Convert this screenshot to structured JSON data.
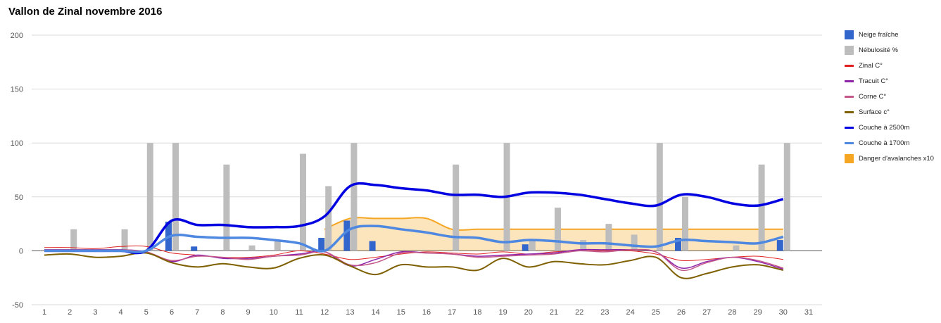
{
  "chart_data": {
    "type": "bar",
    "title": "Vallon de Zinal novembre 2016",
    "xlabel": "",
    "ylabel": "",
    "ylim": [
      -50,
      200
    ],
    "yticks": [
      -50,
      0,
      50,
      100,
      150,
      200
    ],
    "x": [
      1,
      2,
      3,
      4,
      5,
      6,
      7,
      8,
      9,
      10,
      11,
      12,
      13,
      14,
      15,
      16,
      17,
      18,
      19,
      20,
      21,
      22,
      23,
      24,
      25,
      26,
      27,
      28,
      29,
      30,
      31
    ],
    "grid": true,
    "legend_position": "right",
    "series": [
      {
        "name": "Neige fraîche",
        "kind": "bar",
        "color": "#3366cc",
        "values": [
          0,
          0,
          0,
          0,
          0,
          27,
          4,
          0,
          0,
          0,
          0,
          12,
          28,
          9,
          0,
          0,
          0,
          0,
          0,
          6,
          0,
          0,
          0,
          0,
          0,
          12,
          0,
          0,
          0,
          10,
          0
        ]
      },
      {
        "name": "Nébulosité %",
        "kind": "bar",
        "color": "#bdbdbd",
        "values": [
          0,
          20,
          0,
          20,
          100,
          100,
          0,
          80,
          5,
          10,
          90,
          60,
          100,
          0,
          0,
          0,
          80,
          0,
          100,
          10,
          40,
          10,
          25,
          15,
          100,
          50,
          0,
          5,
          80,
          100,
          0
        ]
      },
      {
        "name": "Zinal C°",
        "kind": "line",
        "color": "#e02020",
        "values": [
          3,
          3,
          2,
          4,
          4,
          -2,
          -4,
          -6,
          -6,
          -4,
          0,
          -3,
          -8,
          -6,
          -3,
          -1,
          -2,
          -3,
          -1,
          -3,
          -1,
          0,
          0,
          0,
          -3,
          -9,
          -8,
          -6,
          -5,
          -8,
          null
        ]
      },
      {
        "name": "Tracuit C°",
        "kind": "line",
        "color": "#8e24aa",
        "values": [
          1,
          1,
          1,
          1,
          -1,
          -10,
          -4,
          -7,
          -7,
          -5,
          -3,
          -1,
          -14,
          -8,
          -1,
          -2,
          -3,
          -5,
          -4,
          -3,
          -2,
          1,
          1,
          1,
          -1,
          -16,
          -10,
          -6,
          -10,
          -17,
          null
        ]
      },
      {
        "name": "Corne C°",
        "kind": "line",
        "color": "#c2578a",
        "values": [
          1,
          1,
          1,
          1,
          -1,
          -9,
          -5,
          -6,
          -8,
          -5,
          -4,
          -1,
          -13,
          -11,
          -2,
          -2,
          -3,
          -6,
          -5,
          -4,
          -3,
          0,
          -1,
          1,
          -1,
          -18,
          -11,
          -6,
          -9,
          -16,
          null
        ]
      },
      {
        "name": "Surface c°",
        "kind": "line",
        "color": "#7f6000",
        "values": [
          -4,
          -3,
          -6,
          -5,
          -2,
          -11,
          -15,
          -12,
          -15,
          -16,
          -7,
          -4,
          -14,
          -22,
          -13,
          -15,
          -15,
          -18,
          -7,
          -15,
          -10,
          -12,
          -13,
          -9,
          -6,
          -25,
          -21,
          -15,
          -13,
          -18,
          null
        ]
      },
      {
        "name": "Couche à 2500m",
        "kind": "line",
        "color": "#0000e0",
        "values": [
          0,
          0,
          0,
          0,
          0,
          28,
          24,
          24,
          22,
          22,
          23,
          32,
          60,
          61,
          58,
          56,
          52,
          52,
          50,
          54,
          54,
          52,
          48,
          44,
          42,
          52,
          50,
          44,
          42,
          48,
          null
        ]
      },
      {
        "name": "Couche à 1700m",
        "kind": "line",
        "color": "#4f88e0",
        "values": [
          0,
          0,
          0,
          0,
          0,
          14,
          13,
          12,
          12,
          10,
          7,
          0,
          20,
          23,
          20,
          17,
          13,
          12,
          8,
          10,
          9,
          7,
          7,
          5,
          4,
          10,
          9,
          8,
          7,
          13,
          null
        ]
      },
      {
        "name": "Danger d'avalanches x10",
        "kind": "area",
        "color": "#f5a623",
        "values": [
          null,
          null,
          null,
          null,
          null,
          null,
          null,
          null,
          null,
          null,
          null,
          20,
          30,
          30,
          30,
          30,
          20,
          20,
          20,
          20,
          20,
          20,
          20,
          20,
          20,
          20,
          20,
          20,
          20,
          20,
          null
        ]
      }
    ]
  }
}
